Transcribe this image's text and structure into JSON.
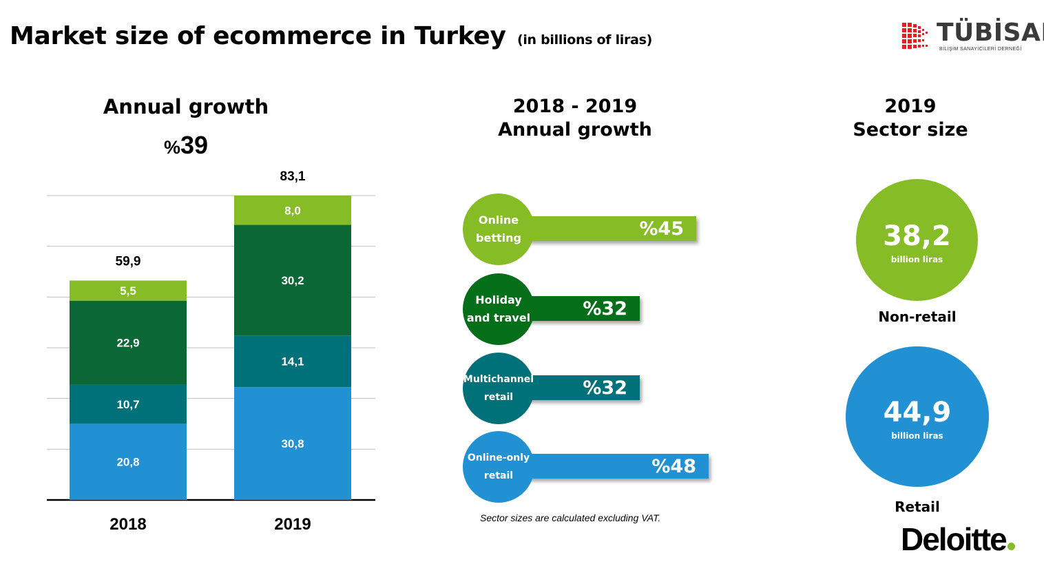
{
  "title": "Market size of ecommerce in Turkey",
  "title_unit": "(in billions of liras)",
  "logos": {
    "tubisad": "TÜBİSAD",
    "tubisad_sub": "BİLİŞİM SANAYİCİLERİ DERNEĞİ",
    "deloitte": "Deloitte"
  },
  "colors": {
    "light_green": "#86bc25",
    "dark_green": "#0b6836",
    "teal": "#007179",
    "blue": "#2191d4",
    "holiday_green": "#056e18"
  },
  "left": {
    "title": "Annual growth",
    "growth_prefix": "%",
    "growth_value": "39"
  },
  "chart_data": [
    {
      "type": "bar",
      "stacked": true,
      "categories": [
        "2018",
        "2019"
      ],
      "totals": [
        59.9,
        83.1
      ],
      "total_labels": [
        "59,9",
        "83,1"
      ],
      "series": [
        {
          "values": [
            20.8,
            30.8
          ],
          "labels": [
            "20,8",
            "30,8"
          ],
          "color": "#2191d4"
        },
        {
          "values": [
            10.7,
            14.1
          ],
          "labels": [
            "10,7",
            "14,1"
          ],
          "color": "#007179"
        },
        {
          "values": [
            22.9,
            30.2
          ],
          "labels": [
            "22,9",
            "30,2"
          ],
          "color": "#0b6836"
        },
        {
          "values": [
            5.5,
            8.0
          ],
          "labels": [
            "5,5",
            "8,0"
          ],
          "color": "#86bc25"
        }
      ],
      "ylim": [
        0,
        90
      ],
      "grid": true
    },
    {
      "type": "bar",
      "orientation": "horizontal",
      "title": "2018 - 2019 Annual growth",
      "categories": [
        "Online betting",
        "Holiday and travel",
        "Multichannel retail",
        "Online-only retail"
      ],
      "values": [
        45,
        32,
        32,
        48
      ],
      "labels": [
        "%45",
        "%32",
        "%32",
        "%48"
      ]
    }
  ],
  "middle": {
    "title_line1": "2018 - 2019",
    "title_line2": "Annual growth",
    "items": [
      {
        "line1": "Online",
        "line2": "betting",
        "value": "%45",
        "color": "#86bc25",
        "growth": 45
      },
      {
        "line1": "Holiday",
        "line2": "and travel",
        "value": "%32",
        "color": "#056e18",
        "growth": 32
      },
      {
        "line1": "Multichannel",
        "line2": "retail",
        "value": "%32",
        "color": "#007179",
        "growth": 32
      },
      {
        "line1": "Online-only",
        "line2": "retail",
        "value": "%48",
        "color": "#2191d4",
        "growth": 48
      }
    ],
    "footnote": "Sector sizes are calculated excluding VAT."
  },
  "right": {
    "title_line1": "2019",
    "title_line2": "Sector size",
    "non_retail": {
      "value": "38,2",
      "unit": "billion liras",
      "label": "Non-retail",
      "color": "#86bc25"
    },
    "retail": {
      "value": "44,9",
      "unit": "billion liras",
      "label": "Retail",
      "color": "#2191d4"
    }
  }
}
